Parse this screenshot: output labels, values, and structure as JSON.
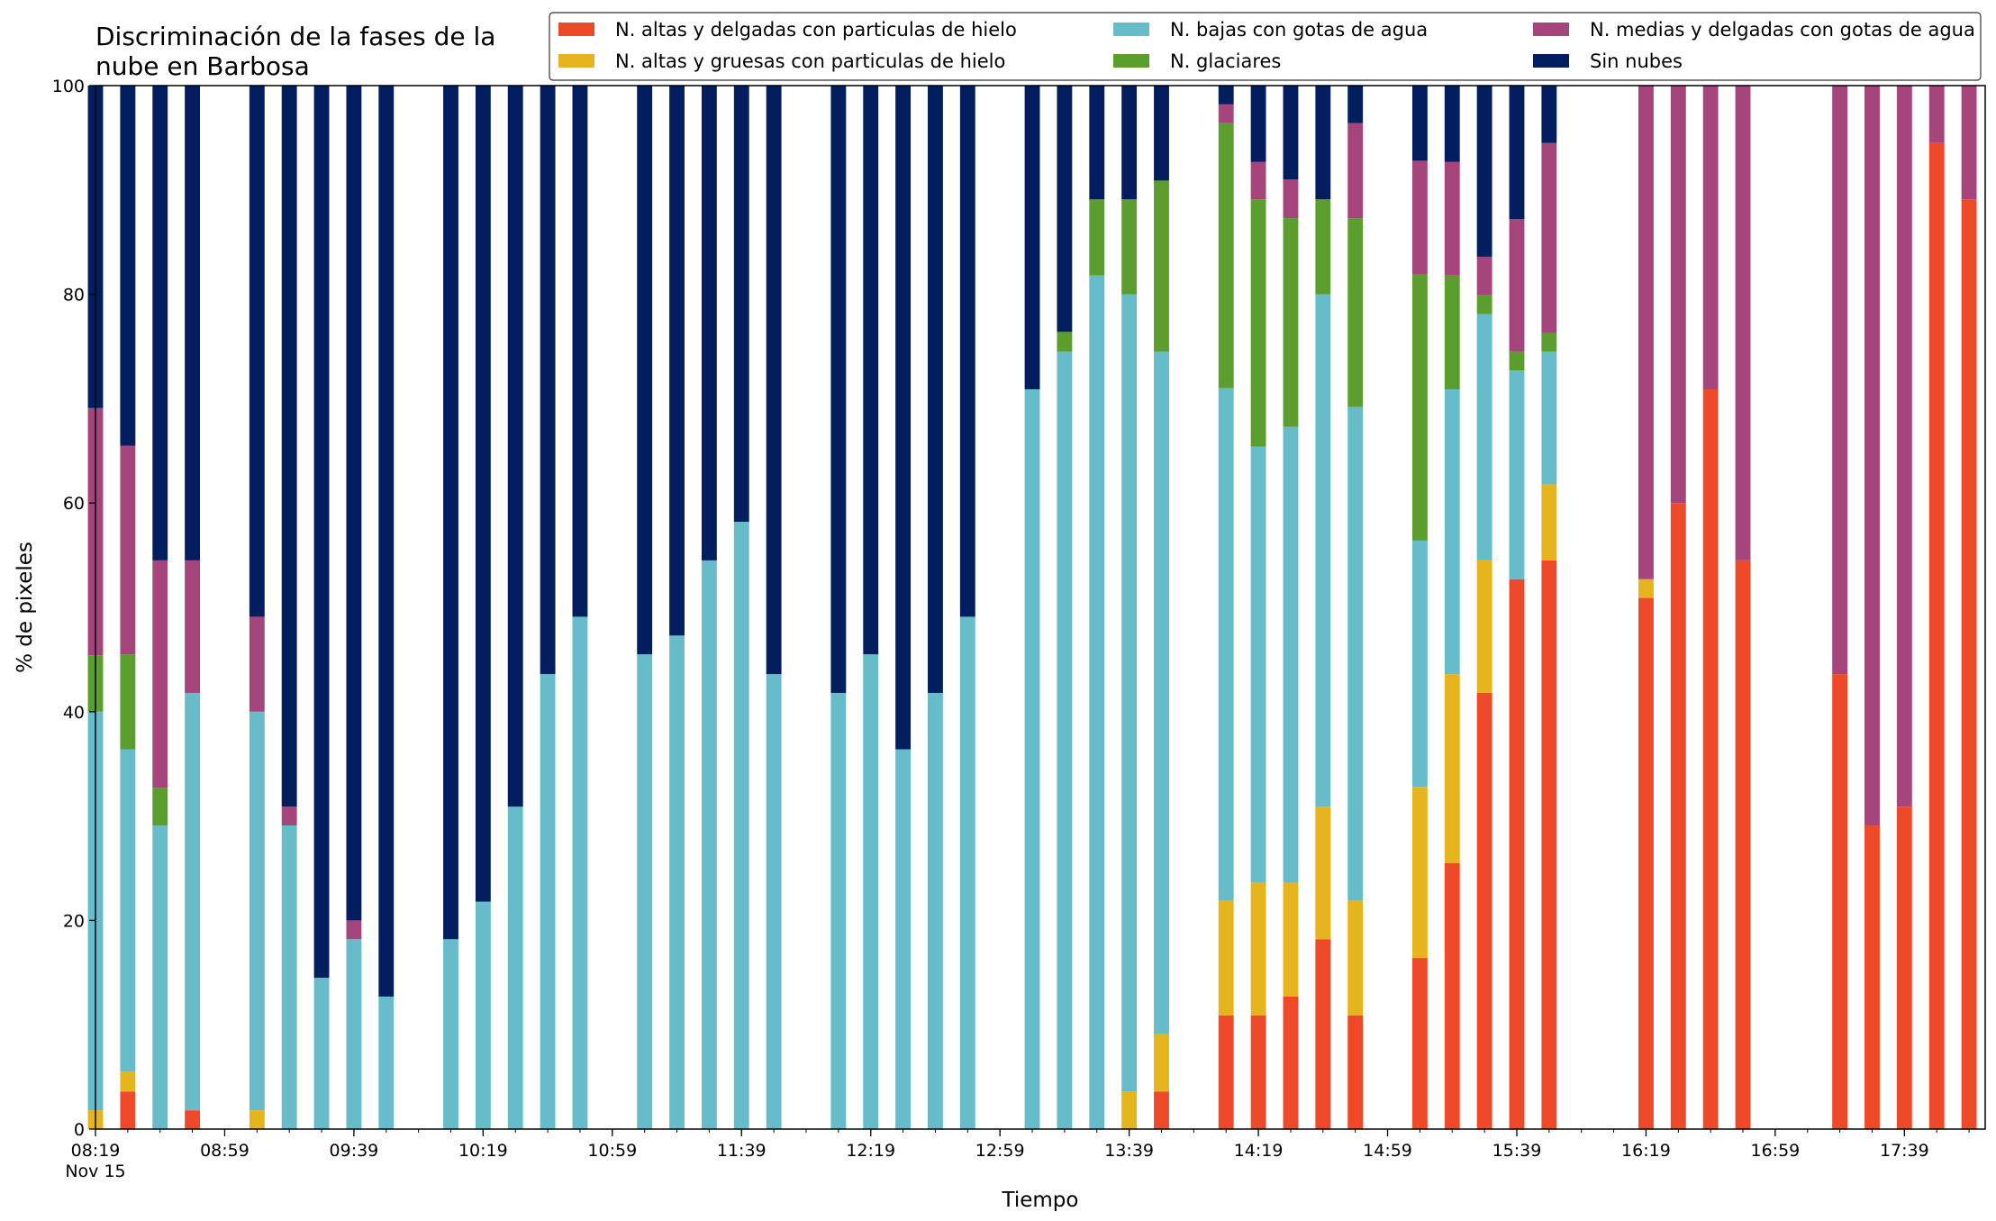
{
  "chart_data": {
    "type": "bar",
    "stacked": true,
    "title_lines": [
      "Discriminación de la fases de la",
      "nube en Barbosa"
    ],
    "xlabel": "Tiempo",
    "ylabel": "% de pixeles",
    "ylim": [
      0,
      100
    ],
    "yticks": [
      0,
      20,
      40,
      60,
      80,
      100
    ],
    "grid": false,
    "legend_position": "top-right",
    "x_time_range_minutes": [
      "08:19",
      "18:04"
    ],
    "x_major_ticks": [
      {
        "time": "08:19",
        "label": "08:19",
        "sublabel": "Nov 15"
      },
      {
        "time": "08:59",
        "label": "08:59",
        "sublabel": ""
      },
      {
        "time": "09:39",
        "label": "09:39",
        "sublabel": ""
      },
      {
        "time": "10:19",
        "label": "10:19",
        "sublabel": ""
      },
      {
        "time": "10:59",
        "label": "10:59",
        "sublabel": ""
      },
      {
        "time": "11:39",
        "label": "11:39",
        "sublabel": ""
      },
      {
        "time": "12:19",
        "label": "12:19",
        "sublabel": ""
      },
      {
        "time": "12:59",
        "label": "12:59",
        "sublabel": ""
      },
      {
        "time": "13:39",
        "label": "13:39",
        "sublabel": ""
      },
      {
        "time": "14:19",
        "label": "14:19",
        "sublabel": ""
      },
      {
        "time": "14:59",
        "label": "14:59",
        "sublabel": ""
      },
      {
        "time": "15:39",
        "label": "15:39",
        "sublabel": ""
      },
      {
        "time": "16:19",
        "label": "16:19",
        "sublabel": ""
      },
      {
        "time": "16:59",
        "label": "16:59",
        "sublabel": ""
      },
      {
        "time": "17:39",
        "label": "17:39",
        "sublabel": ""
      }
    ],
    "x": [
      "08:19",
      "08:29",
      "08:39",
      "08:49",
      "09:09",
      "09:19",
      "09:29",
      "09:39",
      "09:49",
      "10:09",
      "10:19",
      "10:29",
      "10:39",
      "10:49",
      "11:09",
      "11:19",
      "11:29",
      "11:39",
      "11:49",
      "12:09",
      "12:19",
      "12:29",
      "12:39",
      "12:49",
      "13:09",
      "13:19",
      "13:29",
      "13:39",
      "13:49",
      "14:09",
      "14:19",
      "14:29",
      "14:39",
      "14:49",
      "15:09",
      "15:19",
      "15:29",
      "15:39",
      "15:49",
      "16:19",
      "16:29",
      "16:39",
      "16:49",
      "17:19",
      "17:29",
      "17:39",
      "17:49",
      "17:59"
    ],
    "series": [
      {
        "name": "N. altas y delgadas con particulas de hielo",
        "color": "#ee4a2a",
        "values": [
          0,
          3.6,
          0,
          1.8,
          0,
          0,
          0,
          0,
          0,
          0,
          0,
          0,
          0,
          0,
          0,
          0,
          0,
          0,
          0,
          0,
          0,
          0,
          0,
          0,
          0,
          0,
          0,
          0,
          3.6,
          10.9,
          10.9,
          12.7,
          18.2,
          10.9,
          16.4,
          25.5,
          41.8,
          52.7,
          54.5,
          50.9,
          60,
          70.9,
          54.5,
          43.6,
          29.1,
          30.9,
          94.5,
          89.1
        ]
      },
      {
        "name": "N. altas y gruesas con particulas de hielo",
        "color": "#e6b41c",
        "values": [
          1.8,
          1.9,
          0,
          0,
          1.8,
          0,
          0,
          0,
          0,
          0,
          0,
          0,
          0,
          0,
          0,
          0,
          0,
          0,
          0,
          0,
          0,
          0,
          0,
          0,
          0,
          0,
          0,
          3.6,
          5.5,
          11,
          12.7,
          10.9,
          12.7,
          11,
          16.4,
          18.1,
          12.7,
          0,
          7.3,
          1.8,
          0,
          0,
          0,
          0,
          0,
          0,
          0,
          0
        ]
      },
      {
        "name": "N. bajas con gotas de agua",
        "color": "#66bdc9",
        "values": [
          38.2,
          30.9,
          29.1,
          40,
          38.2,
          29.1,
          14.5,
          18.2,
          12.7,
          18.2,
          21.8,
          30.9,
          43.6,
          49.1,
          45.5,
          47.3,
          54.5,
          58.2,
          43.6,
          41.8,
          45.5,
          36.4,
          41.8,
          49.1,
          70.9,
          74.5,
          81.8,
          76.4,
          65.4,
          49.1,
          41.8,
          43.7,
          49.1,
          47.3,
          23.6,
          27.3,
          23.6,
          20,
          12.7,
          0,
          0,
          0,
          0,
          0,
          0,
          0,
          0,
          0
        ]
      },
      {
        "name": "N. glaciares",
        "color": "#5c9e2e",
        "values": [
          5.4,
          9.1,
          3.6,
          0,
          0,
          0,
          0,
          0,
          0,
          0,
          0,
          0,
          0,
          0,
          0,
          0,
          0,
          0,
          0,
          0,
          0,
          0,
          0,
          0,
          0,
          1.9,
          7.3,
          9.1,
          16.4,
          25.4,
          23.7,
          20,
          9.1,
          18.1,
          25.5,
          10.9,
          1.8,
          1.8,
          1.8,
          0,
          0,
          0,
          0,
          0,
          0,
          0,
          0,
          0
        ]
      },
      {
        "name": "N. medias y delgadas con gotas de agua",
        "color": "#a5457b",
        "values": [
          23.7,
          20,
          21.8,
          12.7,
          9.1,
          1.8,
          0,
          1.8,
          0,
          0,
          0,
          0,
          0,
          0,
          0,
          0,
          0,
          0,
          0,
          0,
          0,
          0,
          0,
          0,
          0,
          0,
          0,
          0,
          0,
          1.8,
          3.6,
          3.7,
          0,
          9.1,
          10.9,
          10.9,
          3.7,
          12.7,
          18.2,
          47.3,
          40,
          29.1,
          45.5,
          56.4,
          70.9,
          69.1,
          5.5,
          10.9
        ]
      },
      {
        "name": "Sin nubes",
        "color": "#021e5f",
        "values": [
          30.9,
          34.5,
          45.5,
          45.5,
          50.9,
          69.1,
          85.5,
          80,
          87.3,
          81.8,
          78.2,
          69.1,
          56.4,
          50.9,
          54.5,
          52.7,
          45.5,
          41.8,
          56.4,
          58.2,
          54.5,
          63.6,
          58.2,
          50.9,
          29.1,
          23.6,
          10.9,
          10.9,
          9.1,
          1.8,
          7.3,
          9.0,
          10.9,
          3.6,
          7.2,
          7.3,
          16.4,
          12.8,
          5.5,
          0,
          0,
          0,
          0,
          0,
          0,
          0,
          0,
          0
        ]
      }
    ]
  }
}
